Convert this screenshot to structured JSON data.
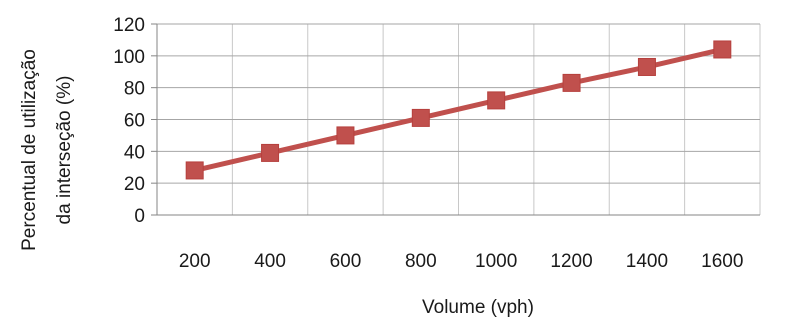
{
  "chart_data": {
    "type": "line",
    "title": "",
    "xlabel": "Volume (vph)",
    "ylabel_lines": [
      "Percentual de utilização",
      "da interseção (%)"
    ],
    "categories": [
      "200",
      "400",
      "600",
      "800",
      "1000",
      "1200",
      "1400",
      "1600"
    ],
    "y_ticks": [
      "0",
      "20",
      "40",
      "60",
      "80",
      "100",
      "120"
    ],
    "ylim": [
      0,
      120
    ],
    "grid": true,
    "legend": "none",
    "series": [
      {
        "values": [
          28,
          39,
          50,
          61,
          72,
          83,
          93,
          104
        ],
        "color": "#c0504d",
        "marker": "square"
      }
    ]
  }
}
